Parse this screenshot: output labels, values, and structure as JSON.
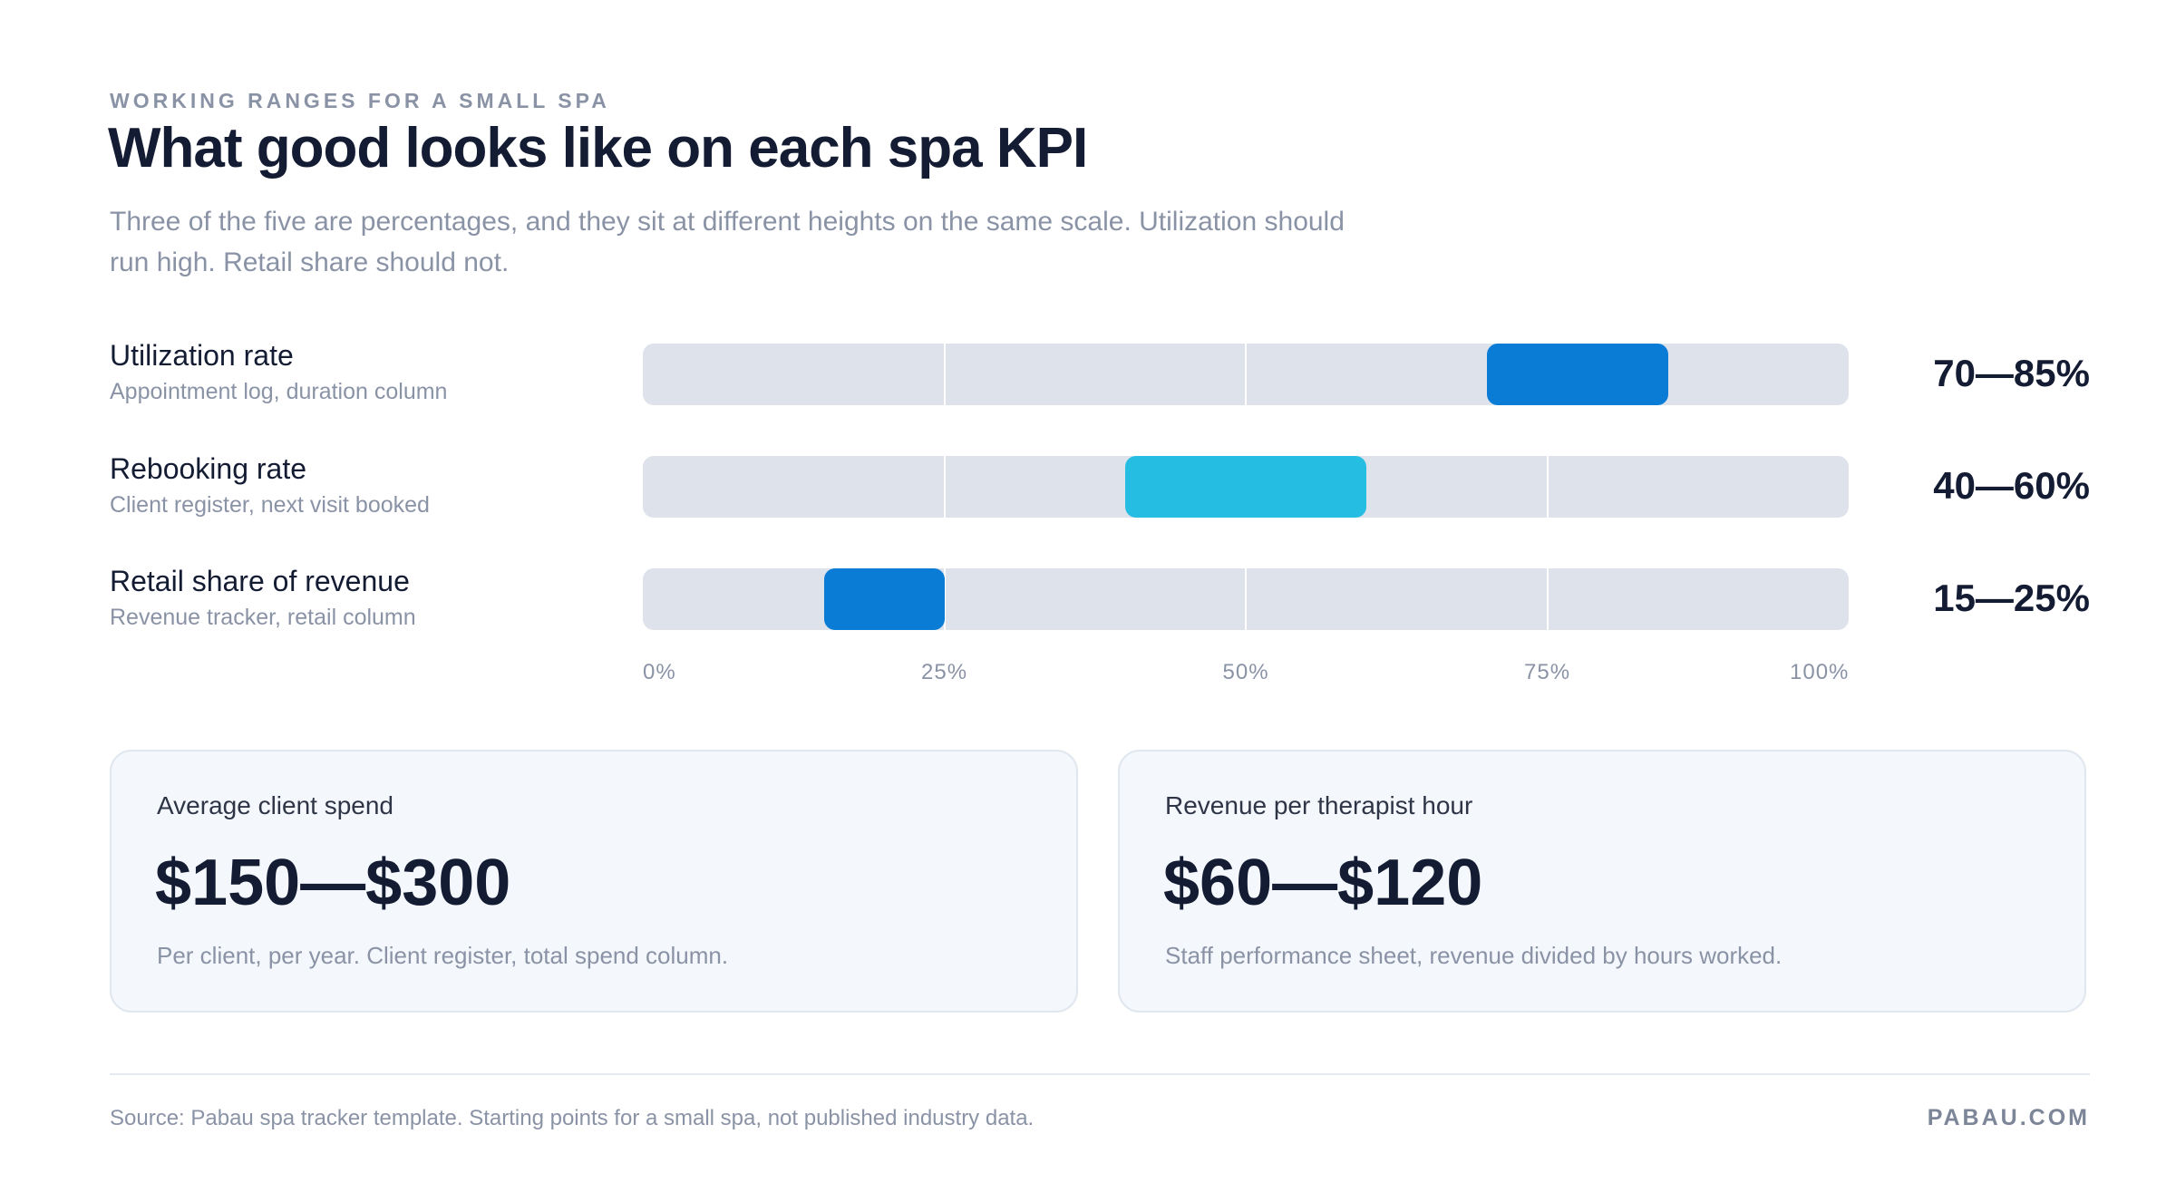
{
  "eyebrow": "WORKING RANGES FOR A SMALL SPA",
  "title": "What good looks like on each spa KPI",
  "subtitle": "Three of the five are percentages, and they sit at different heights on the same scale. Utilization should run high. Retail share should not.",
  "chart_data": {
    "type": "bar",
    "subtype": "range",
    "categories": [
      "Utilization rate",
      "Rebooking rate",
      "Retail share of revenue"
    ],
    "sources": [
      "Appointment log, duration column",
      "Client register, next visit booked",
      "Revenue tracker, retail column"
    ],
    "ranges": [
      [
        70,
        85
      ],
      [
        40,
        60
      ],
      [
        15,
        25
      ]
    ],
    "range_labels": [
      "70—85%",
      "40—60%",
      "15—25%"
    ],
    "colors": [
      "#0a7cd5",
      "#26bde2",
      "#0a7cd5"
    ],
    "xlim": [
      0,
      100
    ],
    "ticks": [
      0,
      25,
      50,
      75,
      100
    ],
    "tick_labels": [
      "0%",
      "25%",
      "50%",
      "75%",
      "100%"
    ],
    "grid": true,
    "track_color": "#dde2eb"
  },
  "cards": [
    {
      "label": "Average client spend",
      "value": "$150—$300",
      "note": "Per client, per year. Client register, total spend column."
    },
    {
      "label": "Revenue per therapist hour",
      "value": "$60—$120",
      "note": "Staff performance sheet, revenue divided by hours worked."
    }
  ],
  "footer": {
    "source": "Source: Pabau spa tracker template. Starting points for a small spa, not published industry data.",
    "brand": "PABAU.COM"
  }
}
